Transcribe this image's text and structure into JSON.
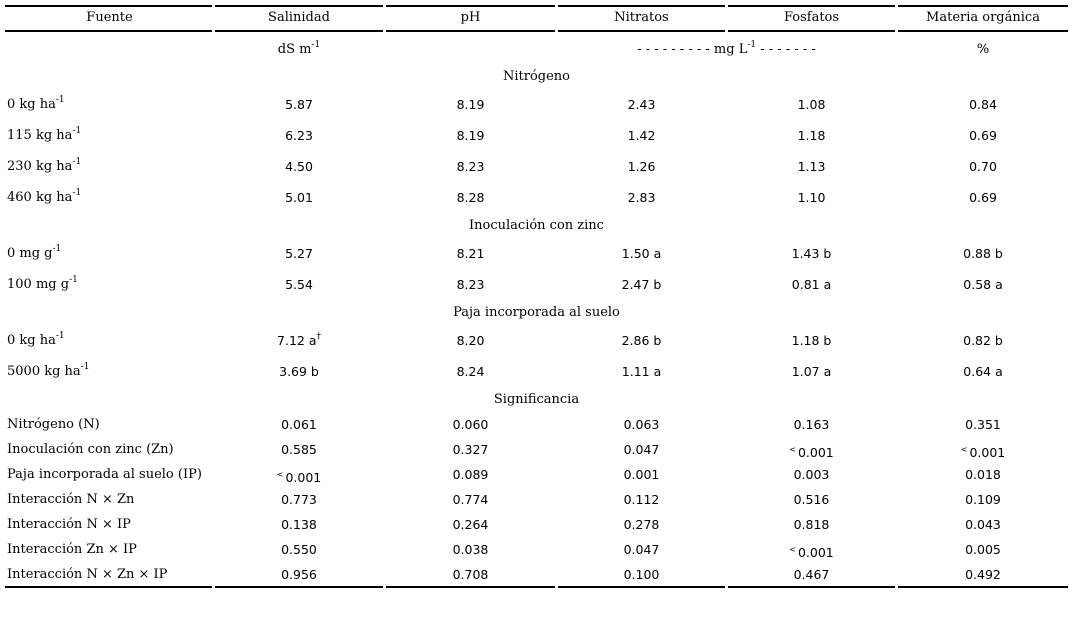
{
  "columns": [
    "Fuente",
    "Salinidad",
    "pH",
    "Nitratos",
    "Fosfatos",
    "Materia orgánica"
  ],
  "units": {
    "salinidad_base": "dS m",
    "salinidad_exp": "-1",
    "mg_dashes_left": "- - - - - - - - - mg L",
    "mg_exp": "-1",
    "mg_dashes_right": " - - - - - - -",
    "materia": "%"
  },
  "sections": {
    "nitrogeno": "Nitrógeno",
    "zinc": "Inoculación con zinc",
    "paja": "Paja incorporada al suelo",
    "significancia": "Significancia"
  },
  "nitrogeno_rows": [
    {
      "label": "0 kg ha",
      "exp": "-1",
      "values": [
        "5.87",
        "8.19",
        "2.43",
        "1.08",
        "0.84"
      ]
    },
    {
      "label": "115 kg ha",
      "exp": "-1",
      "values": [
        "6.23",
        "8.19",
        "1.42",
        "1.18",
        "0.69"
      ]
    },
    {
      "label": "230 kg ha",
      "exp": "-1",
      "values": [
        "4.50",
        "8.23",
        "1.26",
        "1.13",
        "0.70"
      ]
    },
    {
      "label": "460 kg ha",
      "exp": "-1",
      "values": [
        "5.01",
        "8.28",
        "2.83",
        "1.10",
        "0.69"
      ]
    }
  ],
  "zinc_rows": [
    {
      "label": "0 mg g",
      "exp": "-1",
      "values": [
        "5.27",
        "8.21",
        "1.50 a",
        "1.43 b",
        "0.88 b"
      ]
    },
    {
      "label": "100 mg g",
      "exp": "-1",
      "values": [
        "5.54",
        "8.23",
        "2.47 b",
        "0.81 a",
        "0.58 a"
      ]
    }
  ],
  "paja_rows": [
    {
      "label": "0 kg ha",
      "exp": "-1",
      "values": [
        "7.12 a",
        "8.20",
        "2.86 b",
        "1.18 b",
        "0.82 b"
      ],
      "dagger": "†"
    },
    {
      "label": "5000 kg ha",
      "exp": "-1",
      "values": [
        "3.69 b",
        "8.24",
        "1.11 a",
        "1.07 a",
        "0.64 a"
      ]
    }
  ],
  "significancia_rows": [
    {
      "label": "Nitrógeno (N)",
      "values": [
        "0.061",
        "0.060",
        "0.063",
        "0.163",
        "0.351"
      ],
      "lt": [
        false,
        false,
        false,
        false,
        false
      ]
    },
    {
      "label": "Inoculación con zinc (Zn)",
      "values": [
        "0.585",
        "0.327",
        "0.047",
        "0.001",
        "0.001"
      ],
      "lt": [
        false,
        false,
        false,
        true,
        true
      ]
    },
    {
      "label": "Paja incorporada al suelo (IP)",
      "values": [
        "0.001",
        "0.089",
        "0.001",
        "0.003",
        "0.018"
      ],
      "lt": [
        true,
        false,
        false,
        false,
        false
      ]
    },
    {
      "label": "Interacción N × Zn",
      "values": [
        "0.773",
        "0.774",
        "0.112",
        "0.516",
        "0.109"
      ],
      "lt": [
        false,
        false,
        false,
        false,
        false
      ]
    },
    {
      "label": "Interacción N × IP",
      "values": [
        "0.138",
        "0.264",
        "0.278",
        "0.818",
        "0.043"
      ],
      "lt": [
        false,
        false,
        false,
        false,
        false
      ]
    },
    {
      "label": "Interacción Zn × IP",
      "values": [
        "0.550",
        "0.038",
        "0.047",
        "0.001",
        "0.005"
      ],
      "lt": [
        false,
        false,
        false,
        true,
        false
      ]
    },
    {
      "label": "Interacción N × Zn × IP",
      "values": [
        "0.956",
        "0.708",
        "0.100",
        "0.467",
        "0.492"
      ],
      "lt": [
        false,
        false,
        false,
        false,
        false
      ]
    }
  ],
  "lt_symbol": "<"
}
